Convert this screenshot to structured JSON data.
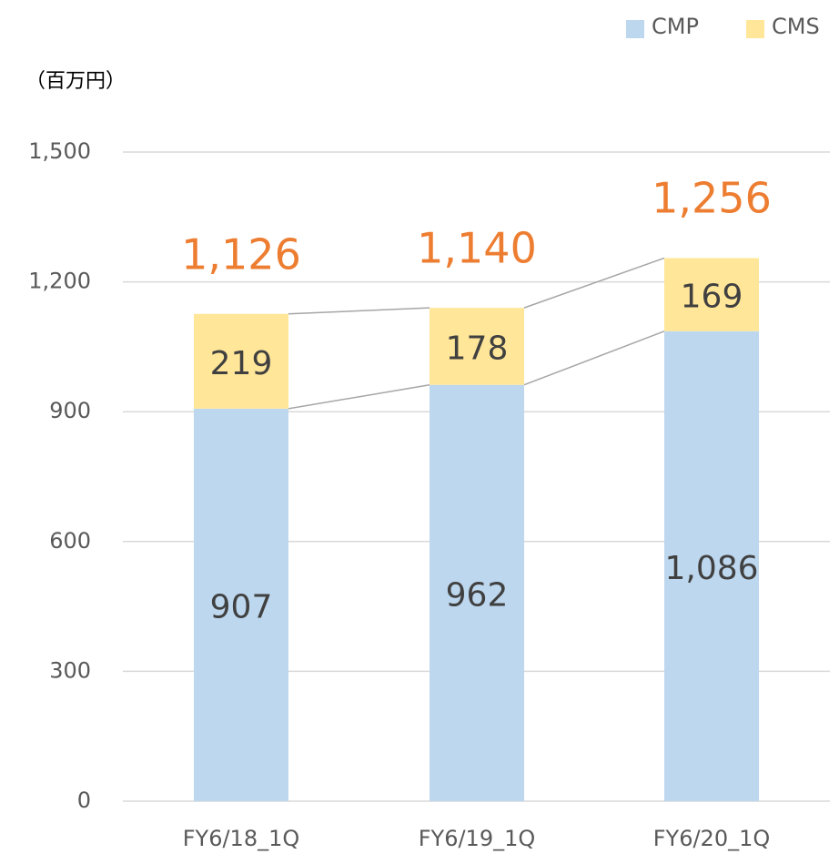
{
  "chart_data": {
    "type": "stacked_bar",
    "y_axis_label": "（百万円）",
    "categories": [
      "FY6/18_1Q",
      "FY6/19_1Q",
      "FY6/20_1Q"
    ],
    "series": [
      {
        "name": "CMP",
        "color": "#bdd7ee",
        "values": [
          907,
          962,
          1086
        ],
        "value_labels": [
          "907",
          "962",
          "1,086"
        ]
      },
      {
        "name": "CMS",
        "color": "#ffe699",
        "values": [
          219,
          178,
          169
        ],
        "value_labels": [
          "219",
          "178",
          "169"
        ]
      }
    ],
    "totals": {
      "values": [
        1126,
        1140,
        1256
      ],
      "value_labels": [
        "1,126",
        "1,140",
        "1,256"
      ],
      "color": "#ed7d31"
    },
    "ylim": [
      0,
      1500
    ],
    "yticks": [
      0,
      300,
      600,
      900,
      {
        "value": 1200,
        "label": "1,200"
      },
      {
        "value": 1500,
        "label": "1,500"
      }
    ],
    "grid": true,
    "legend": "top-right"
  }
}
